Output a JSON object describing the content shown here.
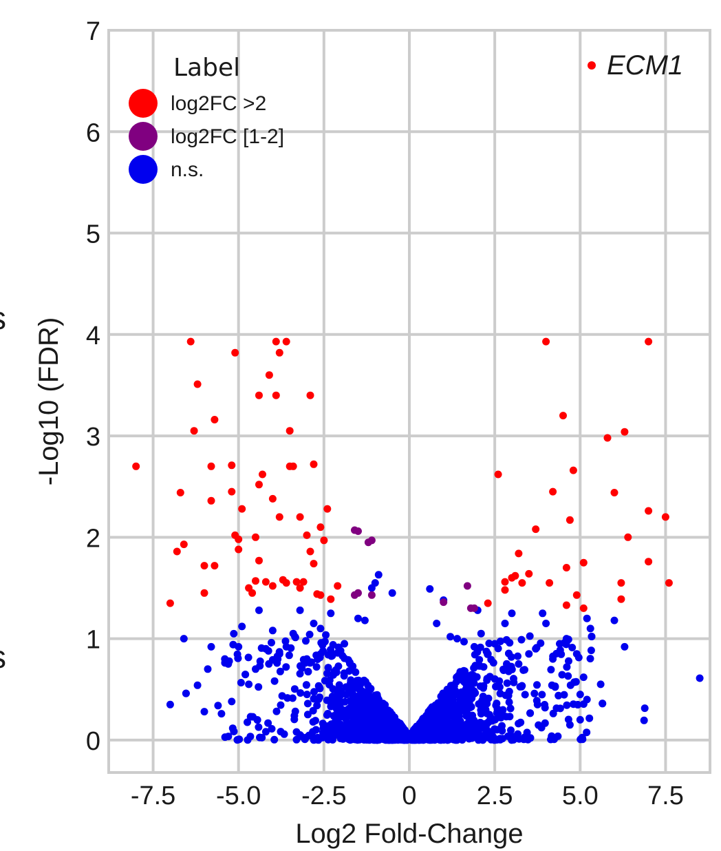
{
  "chart_data": {
    "type": "scatter",
    "title": "",
    "xlabel": "Log2 Fold-Change",
    "ylabel": "-Log10 (FDR)",
    "xlim": [
      -8.8,
      8.8
    ],
    "ylim": [
      -0.32,
      7.0
    ],
    "xticks": [
      -7.5,
      -5.0,
      -2.5,
      0,
      2.5,
      5.0,
      7.5
    ],
    "xtick_labels": [
      "-7.5",
      "-5.0",
      "-2.5",
      "0",
      "2.5",
      "5.0",
      "7.5"
    ],
    "yticks": [
      0,
      1,
      2,
      3,
      4,
      5,
      6,
      7
    ],
    "ytick_labels": [
      "0",
      "1",
      "2",
      "3",
      "4",
      "5",
      "6",
      "7"
    ],
    "grid": true,
    "legend": {
      "title": "Label",
      "placement": "top-left",
      "entries": [
        {
          "label": "log2FC >2",
          "color": "#ff0000"
        },
        {
          "label": "log2FC [1-2]",
          "color": "#800080"
        },
        {
          "label": "n.s.",
          "color": "#0000ee"
        }
      ]
    },
    "annotations": [
      {
        "text": "ECM1",
        "color": "#ff0000",
        "placement": "top-right"
      }
    ],
    "series": [
      {
        "name": "log2FC >2",
        "color": "#ff0000",
        "points": [
          [
            -8.0,
            2.7
          ],
          [
            -7.0,
            1.35
          ],
          [
            -6.8,
            1.86
          ],
          [
            -6.6,
            1.93
          ],
          [
            -6.7,
            2.44
          ],
          [
            -6.4,
            3.93
          ],
          [
            -6.3,
            3.05
          ],
          [
            -6.2,
            3.51
          ],
          [
            -6.0,
            1.72
          ],
          [
            -5.8,
            2.7
          ],
          [
            -5.8,
            2.36
          ],
          [
            -5.7,
            3.16
          ],
          [
            -5.7,
            1.72
          ],
          [
            -5.2,
            2.45
          ],
          [
            -5.2,
            2.71
          ],
          [
            -5.1,
            2.02
          ],
          [
            -5.1,
            3.82
          ],
          [
            -5.0,
            1.98
          ],
          [
            -5.0,
            1.88
          ],
          [
            -4.9,
            2.28
          ],
          [
            -4.7,
            1.5
          ],
          [
            -4.6,
            1.45
          ],
          [
            -4.5,
            1.57
          ],
          [
            -4.5,
            2.0
          ],
          [
            -4.4,
            1.77
          ],
          [
            -4.4,
            2.52
          ],
          [
            -4.4,
            3.4
          ],
          [
            -4.3,
            2.62
          ],
          [
            -4.2,
            1.56
          ],
          [
            -4.1,
            3.6
          ],
          [
            -4.0,
            2.38
          ],
          [
            -4.0,
            1.52
          ],
          [
            -3.9,
            3.4
          ],
          [
            -3.9,
            3.93
          ],
          [
            -3.8,
            2.2
          ],
          [
            -3.8,
            3.82
          ],
          [
            -3.7,
            1.58
          ],
          [
            -3.6,
            3.93
          ],
          [
            -3.5,
            2.7
          ],
          [
            -3.5,
            3.05
          ],
          [
            -3.4,
            2.7
          ],
          [
            -3.3,
            1.56
          ],
          [
            -3.2,
            1.5
          ],
          [
            -3.2,
            2.2
          ],
          [
            -3.1,
            1.56
          ],
          [
            -3.0,
            2.02
          ],
          [
            -2.9,
            1.86
          ],
          [
            -2.9,
            3.4
          ],
          [
            -2.8,
            2.72
          ],
          [
            -2.8,
            1.74
          ],
          [
            -2.7,
            1.44
          ],
          [
            -2.6,
            2.1
          ],
          [
            -2.6,
            1.43
          ],
          [
            -2.5,
            1.97
          ],
          [
            -2.4,
            2.28
          ],
          [
            -2.3,
            1.39
          ],
          [
            -2.1,
            1.52
          ],
          [
            -6.0,
            1.45
          ],
          [
            -3.6,
            1.55
          ],
          [
            2.6,
            2.62
          ],
          [
            2.8,
            1.56
          ],
          [
            2.8,
            1.48
          ],
          [
            3.0,
            1.6
          ],
          [
            3.1,
            1.62
          ],
          [
            3.2,
            1.84
          ],
          [
            3.3,
            1.55
          ],
          [
            3.5,
            1.64
          ],
          [
            3.7,
            2.08
          ],
          [
            4.0,
            3.93
          ],
          [
            4.1,
            1.55
          ],
          [
            4.2,
            2.45
          ],
          [
            4.5,
            3.2
          ],
          [
            4.6,
            1.7
          ],
          [
            4.7,
            2.17
          ],
          [
            4.8,
            2.66
          ],
          [
            4.9,
            1.43
          ],
          [
            5.1,
            1.75
          ],
          [
            5.1,
            1.3
          ],
          [
            5.8,
            2.98
          ],
          [
            6.0,
            2.44
          ],
          [
            6.2,
            1.55
          ],
          [
            6.2,
            1.39
          ],
          [
            6.3,
            3.04
          ],
          [
            6.4,
            2.0
          ],
          [
            7.0,
            2.26
          ],
          [
            7.0,
            1.76
          ],
          [
            7.5,
            2.2
          ],
          [
            7.6,
            1.55
          ],
          [
            7.0,
            3.93
          ],
          [
            4.6,
            1.33
          ],
          [
            2.3,
            1.35
          ]
        ]
      },
      {
        "name": "log2FC [1-2]",
        "color": "#800080",
        "points": [
          [
            -1.6,
            1.43
          ],
          [
            -1.6,
            2.07
          ],
          [
            -1.5,
            2.06
          ],
          [
            -1.5,
            1.45
          ],
          [
            -1.2,
            1.95
          ],
          [
            -1.1,
            1.97
          ],
          [
            -1.1,
            1.43
          ],
          [
            1.0,
            1.36
          ],
          [
            1.7,
            1.52
          ],
          [
            1.8,
            1.3
          ],
          [
            1.9,
            1.3
          ]
        ]
      },
      {
        "name": "n.s.",
        "color": "#0000ee",
        "generated": "dense cloud of non-significant genes around 0 (about 2000 points)",
        "points": [
          [
            -7.0,
            0.35
          ],
          [
            -6.6,
            1.0
          ],
          [
            -6.2,
            0.54
          ],
          [
            -6.0,
            0.28
          ],
          [
            -5.9,
            0.7
          ],
          [
            -5.8,
            0.92
          ],
          [
            -5.6,
            0.34
          ],
          [
            -5.5,
            0.26
          ],
          [
            -5.4,
            0.8
          ],
          [
            -5.3,
            0.75
          ],
          [
            -5.2,
            0.38
          ],
          [
            -5.0,
            0.92
          ],
          [
            -4.9,
            1.12
          ],
          [
            -4.7,
            0.55
          ],
          [
            -4.5,
            0.7
          ],
          [
            -4.4,
            1.28
          ],
          [
            -4.2,
            0.9
          ],
          [
            -4.0,
            1.08
          ],
          [
            -3.8,
            0.85
          ],
          [
            -3.6,
            0.92
          ],
          [
            -3.4,
            1.05
          ],
          [
            -3.2,
            1.28
          ],
          [
            -3.0,
            0.8
          ],
          [
            -2.8,
            1.15
          ],
          [
            -2.6,
            1.1
          ],
          [
            -2.3,
            1.25
          ],
          [
            -2.1,
            0.86
          ],
          [
            -1.9,
            0.95
          ],
          [
            -1.5,
            1.2
          ],
          [
            -1.3,
            1.18
          ],
          [
            -1.1,
            1.5
          ],
          [
            -1.0,
            1.55
          ],
          [
            -0.9,
            1.63
          ],
          [
            -0.5,
            1.45
          ],
          [
            0.6,
            1.49
          ],
          [
            0.8,
            1.15
          ],
          [
            1.0,
            1.38
          ],
          [
            1.2,
            1.02
          ],
          [
            1.4,
            1.0
          ],
          [
            1.6,
            0.97
          ],
          [
            1.9,
            0.92
          ],
          [
            2.0,
            1.28
          ],
          [
            2.1,
            1.05
          ],
          [
            2.3,
            0.85
          ],
          [
            2.5,
            0.95
          ],
          [
            2.8,
            1.15
          ],
          [
            3.0,
            1.25
          ],
          [
            3.2,
            0.75
          ],
          [
            3.5,
            0.85
          ],
          [
            3.7,
            0.9
          ],
          [
            3.9,
            1.25
          ],
          [
            4.0,
            1.15
          ],
          [
            4.2,
            0.8
          ],
          [
            4.4,
            0.95
          ],
          [
            4.6,
            1.0
          ],
          [
            4.7,
            0.15
          ],
          [
            4.9,
            0.85
          ],
          [
            5.0,
            0.45
          ],
          [
            5.0,
            0.2
          ],
          [
            5.1,
            0.62
          ],
          [
            5.2,
            1.2
          ],
          [
            5.2,
            0.4
          ],
          [
            5.3,
            1.1
          ],
          [
            5.6,
            0.55
          ],
          [
            6.0,
            1.18
          ],
          [
            6.3,
            0.92
          ],
          [
            8.5,
            0.61
          ]
        ]
      }
    ]
  }
}
